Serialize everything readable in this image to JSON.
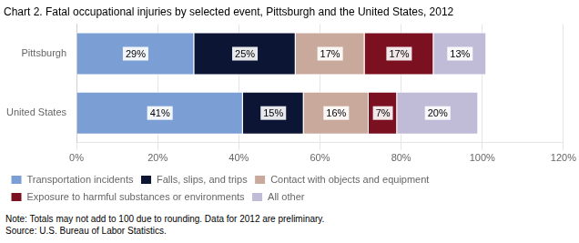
{
  "chart_data": {
    "type": "bar",
    "orientation": "horizontal",
    "stacked": true,
    "title": "Chart 2. Fatal occupational injuries by selected event, Pittsburgh and the United States, 2012",
    "categories": [
      "United States",
      "Pittsburgh"
    ],
    "series": [
      {
        "name": "Transportation incidents",
        "color": "#7b9fd4",
        "values": [
          41,
          29
        ],
        "value_labels": [
          "41%",
          "29%"
        ]
      },
      {
        "name": "Falls, slips, and trips",
        "color": "#0d1535",
        "values": [
          15,
          25
        ],
        "value_labels": [
          "15%",
          "25%"
        ]
      },
      {
        "name": "Contact with objects and equipment",
        "color": "#c9a99b",
        "values": [
          16,
          17
        ],
        "value_labels": [
          "16%",
          "17%"
        ]
      },
      {
        "name": "Exposure to harmful substances or environments",
        "color": "#7a1020",
        "values": [
          7,
          17
        ],
        "value_labels": [
          "7%",
          "17%"
        ]
      },
      {
        "name": "All other",
        "color": "#c0bcd8",
        "values": [
          20,
          13
        ],
        "value_labels": [
          "20%",
          "13%"
        ]
      }
    ],
    "xlim": [
      0,
      120
    ],
    "xticks": [
      {
        "value": 0,
        "label": "0%"
      },
      {
        "value": 20,
        "label": "20%"
      },
      {
        "value": 40,
        "label": "40%"
      },
      {
        "value": 60,
        "label": "60%"
      },
      {
        "value": 80,
        "label": "80%"
      },
      {
        "value": 100,
        "label": "100%"
      },
      {
        "value": 120,
        "label": "120%"
      }
    ],
    "grid": true,
    "legend": "bottom",
    "data_labels": true,
    "annotations": [
      "Note: Totals may not add to 100 due to rounding.  Data for 2012 are preliminary.",
      "Source: U.S. Bureau of Labor Statistics."
    ]
  }
}
